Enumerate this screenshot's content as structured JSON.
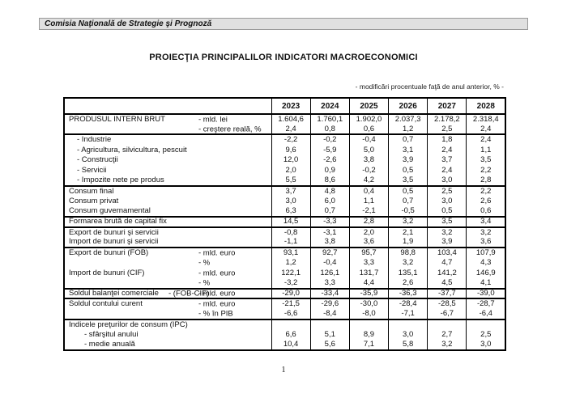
{
  "header": {
    "org_name": "Comisia Naţională de Strategie şi Prognoză"
  },
  "document": {
    "title": "PROIECŢIA PRINCIPALILOR INDICATORI MACROECONOMICI",
    "units_note": "- modificări procentuale faţă de anul anterior, % -",
    "page_number": "1"
  },
  "colors": {
    "band_background": "#e0e0e0",
    "table_border": "#000000",
    "text": "#111111"
  },
  "table": {
    "columns": [
      "2023",
      "2024",
      "2025",
      "2026",
      "2027",
      "2028"
    ],
    "groups": [
      {
        "rows": [
          {
            "label": "PRODUSUL INTERN BRUT",
            "indent": "main",
            "unit": "- mld. lei",
            "values": [
              "1.604,6",
              "1.760,1",
              "1.902,0",
              "2.037,3",
              "2.178,2",
              "2.318,4"
            ]
          },
          {
            "label": "",
            "indent": "main",
            "unit": "- creştere reală, %",
            "values": [
              "2,4",
              "0,8",
              "0,6",
              "1,2",
              "2,5",
              "2,4"
            ]
          }
        ]
      },
      {
        "rows": [
          {
            "label": "- Industrie",
            "indent": "sub",
            "values": [
              "-2,2",
              "-0,2",
              "-0,4",
              "0,7",
              "1,8",
              "2,4"
            ]
          },
          {
            "label": "- Agricultura, silvicultura, pescuit",
            "indent": "sub",
            "values": [
              "9,6",
              "-5,9",
              "5,0",
              "3,1",
              "2,4",
              "1,1"
            ]
          },
          {
            "label": "- Construcţii",
            "indent": "sub",
            "values": [
              "12,0",
              "-2,6",
              "3,8",
              "3,9",
              "3,7",
              "3,5"
            ]
          },
          {
            "label": "- Servicii",
            "indent": "sub",
            "values": [
              "2,0",
              "0,9",
              "-0,2",
              "0,5",
              "2,4",
              "2,2"
            ]
          },
          {
            "label": "- Impozite nete pe produs",
            "indent": "sub",
            "values": [
              "5,5",
              "8,6",
              "4,2",
              "3,5",
              "3,0",
              "2,8"
            ]
          }
        ]
      },
      {
        "rows": [
          {
            "label": "Consum final",
            "indent": "main",
            "values": [
              "3,7",
              "4,8",
              "0,4",
              "0,5",
              "2,5",
              "2,2"
            ]
          },
          {
            "label": "Consum privat",
            "indent": "main",
            "values": [
              "3,0",
              "6,0",
              "1,1",
              "0,7",
              "3,0",
              "2,6"
            ]
          },
          {
            "label": "Consum guvernamental",
            "indent": "main",
            "values": [
              "6,3",
              "0,7",
              "-2,1",
              "-0,5",
              "0,5",
              "0,6"
            ]
          }
        ]
      },
      {
        "rows": [
          {
            "label": "Formarea brută de capital fix",
            "indent": "main",
            "values": [
              "14,5",
              "-3,3",
              "2,8",
              "3,2",
              "3,5",
              "3,4"
            ]
          }
        ]
      },
      {
        "rows": [
          {
            "label": "Export de bunuri şi servicii",
            "indent": "main",
            "values": [
              "-0,8",
              "-3,1",
              "2,0",
              "2,1",
              "3,2",
              "3,2"
            ]
          },
          {
            "label": "Import de bunuri şi servicii",
            "indent": "main",
            "values": [
              "-1,1",
              "3,8",
              "3,6",
              "1,9",
              "3,9",
              "3,6"
            ]
          }
        ]
      },
      {
        "rows": [
          {
            "label": "Export de bunuri (FOB)",
            "indent": "main",
            "unit": "- mld. euro",
            "values": [
              "93,1",
              "92,7",
              "95,7",
              "98,8",
              "103,4",
              "107,9"
            ]
          },
          {
            "label": "",
            "indent": "main",
            "unit": "- %",
            "values": [
              "1,2",
              "-0,4",
              "3,3",
              "3,2",
              "4,7",
              "4,3"
            ]
          },
          {
            "label": "Import de bunuri (CIF)",
            "indent": "main",
            "unit": "- mld. euro",
            "values": [
              "122,1",
              "126,1",
              "131,7",
              "135,1",
              "141,2",
              "146,9"
            ]
          },
          {
            "label": "",
            "indent": "main",
            "unit": "- %",
            "values": [
              "-3,2",
              "3,3",
              "4,4",
              "2,6",
              "4,5",
              "4,1"
            ]
          }
        ]
      },
      {
        "rows": [
          {
            "label": "Soldul balanţei comerciale",
            "indent": "main",
            "mid": "- (FOB-CIF)",
            "unit": "- mld. euro",
            "values": [
              "-29,0",
              "-33,4",
              "-35,9",
              "-36,3",
              "-37,7",
              "-39,0"
            ]
          }
        ]
      },
      {
        "rows": [
          {
            "label": "Soldul contului curent",
            "indent": "main",
            "unit": "- mld. euro",
            "values": [
              "-21,5",
              "-29,6",
              "-30,0",
              "-28,4",
              "-28,5",
              "-28,7"
            ]
          },
          {
            "label": "",
            "indent": "main",
            "unit": "- % în PIB",
            "values": [
              "-6,6",
              "-8,4",
              "-8,0",
              "-7,1",
              "-6,7",
              "-6,4"
            ]
          }
        ]
      },
      {
        "rows": [
          {
            "label": "Indicele preţurilor de consum (IPC)",
            "indent": "main",
            "values": [
              "",
              "",
              "",
              "",
              "",
              ""
            ]
          },
          {
            "label": "- sfârşitul anului",
            "indent": "sub2",
            "values": [
              "6,6",
              "5,1",
              "8,9",
              "3,0",
              "2,7",
              "2,5"
            ]
          },
          {
            "label": "- medie anuală",
            "indent": "sub2",
            "values": [
              "10,4",
              "5,6",
              "7,1",
              "5,8",
              "3,2",
              "3,0"
            ]
          }
        ]
      }
    ]
  }
}
